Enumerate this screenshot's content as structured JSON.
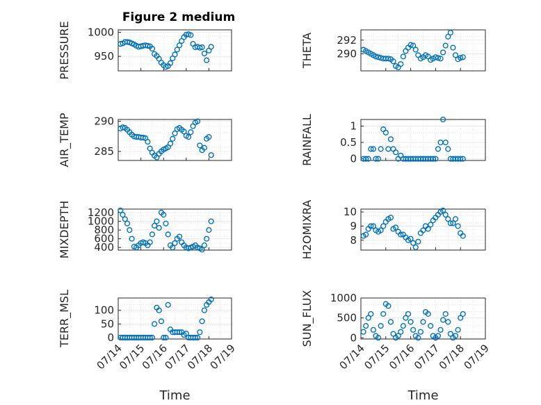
{
  "title": "Figure 2 medium",
  "marker_color": "#0072bd",
  "chart_data": [
    {
      "type": "scatter",
      "ylabel": "PRESSURE",
      "xlabel": "",
      "xlim": [
        0,
        5
      ],
      "ylim": [
        920,
        1005
      ],
      "yticks": [
        950,
        1000
      ],
      "grid": true,
      "x": [
        0.1,
        0.2,
        0.3,
        0.4,
        0.5,
        0.6,
        0.7,
        0.8,
        0.9,
        1.0,
        1.1,
        1.2,
        1.3,
        1.4,
        1.5,
        1.6,
        1.7,
        1.8,
        1.9,
        2.0,
        2.1,
        2.2,
        2.3,
        2.4,
        2.5,
        2.6,
        2.7,
        2.8,
        2.9,
        3.0,
        3.1,
        3.2,
        3.3,
        3.4,
        3.5,
        3.6,
        3.7,
        3.8,
        3.9,
        4.0,
        4.1
      ],
      "values": [
        976,
        977,
        980,
        980,
        979,
        977,
        975,
        972,
        970,
        971,
        972,
        973,
        972,
        971,
        966,
        955,
        951,
        945,
        937,
        932,
        928,
        930,
        936,
        946,
        954,
        964,
        973,
        982,
        990,
        995,
        996,
        994,
        976,
        969,
        970,
        968,
        969,
        956,
        942,
        962,
        970
      ]
    },
    {
      "type": "scatter",
      "ylabel": "THETA",
      "xlabel": "",
      "xlim": [
        0,
        5
      ],
      "ylim": [
        287.5,
        293.5
      ],
      "yticks": [
        290,
        292
      ],
      "grid": true,
      "x": [
        0.1,
        0.2,
        0.3,
        0.4,
        0.5,
        0.6,
        0.7,
        0.8,
        0.9,
        1.0,
        1.1,
        1.2,
        1.3,
        1.4,
        1.5,
        1.6,
        1.7,
        1.8,
        1.9,
        2.0,
        2.1,
        2.2,
        2.3,
        2.4,
        2.5,
        2.6,
        2.7,
        2.8,
        2.9,
        3.0,
        3.1,
        3.2,
        3.3,
        3.4,
        3.5,
        3.6,
        3.7,
        3.8,
        3.9,
        4.0,
        4.1
      ],
      "values": [
        290.6,
        290.4,
        290.2,
        290.0,
        289.8,
        289.6,
        289.5,
        289.4,
        289.3,
        289.3,
        289.3,
        289.2,
        288.9,
        288.2,
        288.0,
        288.5,
        289.6,
        290.4,
        290.9,
        291.3,
        291.2,
        290.6,
        289.8,
        289.3,
        289.5,
        289.8,
        289.6,
        289.1,
        289.3,
        289.5,
        289.4,
        289.3,
        290.2,
        291.2,
        292.5,
        293.1,
        290.9,
        289.8,
        289.2,
        289.4,
        289.5
      ]
    },
    {
      "type": "scatter",
      "ylabel": "AIR_TEMP",
      "xlabel": "",
      "xlim": [
        0,
        5
      ],
      "ylim": [
        283.5,
        290.3
      ],
      "yticks": [
        285,
        290
      ],
      "grid": true,
      "x": [
        0.1,
        0.2,
        0.3,
        0.4,
        0.5,
        0.6,
        0.7,
        0.8,
        0.9,
        1.0,
        1.1,
        1.2,
        1.3,
        1.4,
        1.5,
        1.6,
        1.7,
        1.8,
        1.9,
        2.0,
        2.1,
        2.2,
        2.3,
        2.4,
        2.5,
        2.6,
        2.7,
        2.8,
        2.9,
        3.0,
        3.1,
        3.2,
        3.3,
        3.4,
        3.5,
        3.6,
        3.7,
        3.8,
        3.9,
        4.0,
        4.1
      ],
      "values": [
        288.8,
        289.0,
        288.9,
        288.6,
        288.2,
        287.8,
        287.5,
        287.4,
        287.4,
        287.3,
        287.3,
        287.2,
        286.6,
        285.5,
        284.8,
        284.3,
        284.0,
        284.6,
        285.0,
        285.3,
        285.5,
        285.7,
        286.3,
        287.1,
        288.0,
        288.7,
        288.9,
        288.6,
        288.3,
        287.6,
        287.4,
        288.2,
        289.2,
        289.8,
        290.0,
        286.0,
        285.2,
        285.6,
        287.1,
        287.4,
        284.4
      ]
    },
    {
      "type": "scatter",
      "ylabel": "RAINFALL",
      "xlabel": "",
      "xlim": [
        0,
        5
      ],
      "ylim": [
        -0.05,
        1.2
      ],
      "yticks": [
        0,
        0.5,
        1
      ],
      "ytick_labels": [
        "0",
        "0.5",
        "1"
      ],
      "grid": true,
      "x": [
        0.1,
        0.2,
        0.3,
        0.4,
        0.5,
        0.6,
        0.7,
        0.8,
        0.9,
        1.0,
        1.1,
        1.2,
        1.3,
        1.4,
        1.5,
        1.6,
        1.7,
        1.8,
        1.9,
        2.0,
        2.1,
        2.2,
        2.3,
        2.4,
        2.5,
        2.6,
        2.7,
        2.8,
        2.9,
        3.0,
        3.1,
        3.2,
        3.3,
        3.4,
        3.5,
        3.6,
        3.7,
        3.8,
        3.9,
        4.0,
        4.1
      ],
      "values": [
        0,
        0,
        0,
        0.3,
        0.3,
        0,
        0,
        0.3,
        0.9,
        0.8,
        0.3,
        0.6,
        0.3,
        0.2,
        0,
        0.1,
        0,
        0,
        0,
        0,
        0,
        0,
        0,
        0,
        0,
        0,
        0,
        0,
        0,
        0,
        0.3,
        0.5,
        1.2,
        0.5,
        0.3,
        0,
        0,
        0,
        0,
        0,
        0
      ]
    },
    {
      "type": "scatter",
      "ylabel": "MIXDEPTH",
      "xlabel": "",
      "xlim": [
        0,
        5
      ],
      "ylim": [
        340,
        1280
      ],
      "yticks": [
        400,
        600,
        800,
        1000,
        1200
      ],
      "grid": true,
      "x": [
        0.1,
        0.2,
        0.3,
        0.4,
        0.5,
        0.6,
        0.7,
        0.8,
        0.9,
        1.0,
        1.1,
        1.2,
        1.3,
        1.4,
        1.5,
        1.6,
        1.7,
        1.8,
        1.9,
        2.0,
        2.1,
        2.2,
        2.3,
        2.4,
        2.5,
        2.6,
        2.7,
        2.8,
        2.9,
        3.0,
        3.1,
        3.2,
        3.3,
        3.4,
        3.5,
        3.6,
        3.7,
        3.8,
        3.9,
        4.0,
        4.1
      ],
      "values": [
        1250,
        1150,
        1050,
        950,
        800,
        600,
        420,
        400,
        450,
        500,
        520,
        500,
        450,
        520,
        700,
        900,
        1000,
        850,
        1200,
        1150,
        950,
        700,
        450,
        400,
        500,
        600,
        650,
        520,
        450,
        400,
        380,
        400,
        420,
        450,
        400,
        380,
        350,
        450,
        600,
        800,
        1000
      ]
    },
    {
      "type": "scatter",
      "ylabel": "H2OMIXRA",
      "xlabel": "",
      "xlim": [
        0,
        5
      ],
      "ylim": [
        7.3,
        10.2
      ],
      "yticks": [
        8,
        9,
        10
      ],
      "grid": true,
      "x": [
        0.1,
        0.2,
        0.3,
        0.4,
        0.5,
        0.6,
        0.7,
        0.8,
        0.9,
        1.0,
        1.1,
        1.2,
        1.3,
        1.4,
        1.5,
        1.6,
        1.7,
        1.8,
        1.9,
        2.0,
        2.1,
        2.2,
        2.3,
        2.4,
        2.5,
        2.6,
        2.7,
        2.8,
        2.9,
        3.0,
        3.1,
        3.2,
        3.3,
        3.4,
        3.5,
        3.6,
        3.7,
        3.8,
        3.9,
        4.0,
        4.1
      ],
      "values": [
        8.3,
        8.4,
        8.8,
        9.0,
        9.0,
        8.7,
        8.6,
        8.7,
        9.0,
        9.3,
        9.5,
        9.6,
        8.8,
        8.9,
        8.6,
        8.4,
        8.4,
        8.2,
        8.0,
        8.1,
        7.8,
        7.5,
        7.9,
        8.5,
        8.7,
        9.0,
        8.8,
        9.1,
        9.4,
        9.6,
        9.8,
        10.0,
        10.1,
        9.8,
        9.5,
        9.2,
        9.2,
        9.5,
        9.0,
        8.5,
        8.3
      ]
    },
    {
      "type": "scatter",
      "ylabel": "TERR_MSL",
      "xlabel": "Time",
      "xlim": [
        0,
        5
      ],
      "ylim": [
        -5,
        145
      ],
      "yticks": [
        0,
        50,
        100
      ],
      "xticks": [
        0,
        1,
        2,
        3,
        4,
        5
      ],
      "xtick_labels": [
        "07/14",
        "07/15",
        "07/16",
        "07/17",
        "07/18",
        "07/19"
      ],
      "grid": true,
      "x": [
        0.1,
        0.2,
        0.3,
        0.4,
        0.5,
        0.6,
        0.7,
        0.8,
        0.9,
        1.0,
        1.1,
        1.2,
        1.3,
        1.4,
        1.5,
        1.6,
        1.7,
        1.8,
        1.9,
        2.0,
        2.1,
        2.2,
        2.3,
        2.4,
        2.5,
        2.6,
        2.7,
        2.8,
        2.9,
        3.0,
        3.1,
        3.2,
        3.3,
        3.4,
        3.5,
        3.6,
        3.7,
        3.8,
        3.9,
        4.0,
        4.1
      ],
      "values": [
        0,
        0,
        0,
        0,
        0,
        0,
        0,
        0,
        0,
        0,
        0,
        0,
        0,
        0,
        0,
        50,
        110,
        100,
        60,
        0,
        0,
        120,
        30,
        20,
        20,
        20,
        20,
        20,
        10,
        15,
        0,
        0,
        0,
        0,
        0,
        20,
        60,
        100,
        120,
        130,
        140
      ]
    },
    {
      "type": "scatter",
      "ylabel": "SUN_FLUX",
      "xlabel": "Time",
      "xlim": [
        0,
        5
      ],
      "ylim": [
        -30,
        1000
      ],
      "yticks": [
        0,
        500,
        1000
      ],
      "xticks": [
        0,
        1,
        2,
        3,
        4,
        5
      ],
      "xtick_labels": [
        "07/14",
        "07/15",
        "07/16",
        "07/17",
        "07/18",
        "07/19"
      ],
      "grid": true,
      "x": [
        0.1,
        0.2,
        0.3,
        0.4,
        0.5,
        0.6,
        0.7,
        0.8,
        0.9,
        1.0,
        1.1,
        1.2,
        1.3,
        1.4,
        1.5,
        1.6,
        1.7,
        1.8,
        1.9,
        2.0,
        2.1,
        2.2,
        2.3,
        2.4,
        2.5,
        2.6,
        2.7,
        2.8,
        2.9,
        3.0,
        3.1,
        3.2,
        3.3,
        3.4,
        3.5,
        3.6,
        3.7,
        3.8,
        3.9,
        4.0,
        4.1
      ],
      "values": [
        150,
        300,
        500,
        600,
        200,
        50,
        0,
        300,
        600,
        850,
        800,
        400,
        100,
        0,
        50,
        150,
        300,
        500,
        600,
        400,
        200,
        50,
        0,
        150,
        400,
        650,
        600,
        300,
        50,
        0,
        50,
        200,
        450,
        600,
        400,
        100,
        0,
        50,
        200,
        500,
        600
      ]
    }
  ]
}
